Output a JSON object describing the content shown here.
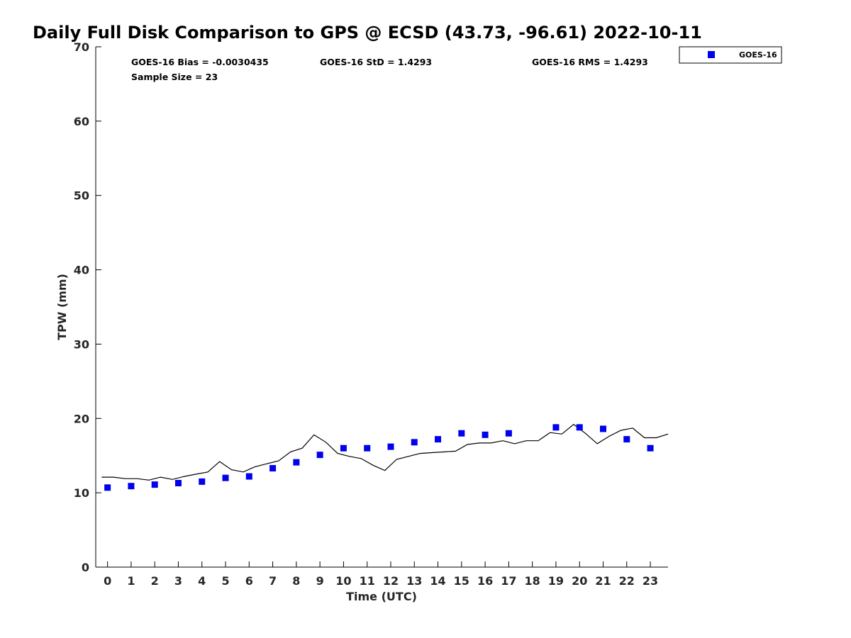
{
  "chart_data": {
    "type": "scatter",
    "title": "Daily Full Disk Comparison to GPS @ ECSD (43.73, -96.61) 2022-10-11",
    "xlabel": "Time (UTC)",
    "ylabel": "TPW (mm)",
    "xlim": [
      -0.5,
      23.75
    ],
    "ylim": [
      0,
      70
    ],
    "xticks": [
      0,
      1,
      2,
      3,
      4,
      5,
      6,
      7,
      8,
      9,
      10,
      11,
      12,
      13,
      14,
      15,
      16,
      17,
      18,
      19,
      20,
      21,
      22,
      23
    ],
    "yticks": [
      0,
      10,
      20,
      30,
      40,
      50,
      60,
      70
    ],
    "grid": false,
    "legend": {
      "position": "top-right",
      "entries": [
        "GOES-16"
      ]
    },
    "stats": {
      "bias": "GOES-16 Bias = -0.0030435",
      "std": "GOES-16 StD = 1.4293",
      "rms": "GOES-16 RMS = 1.4293",
      "sample": "Sample Size = 23"
    },
    "series": [
      {
        "name": "GOES-16",
        "kind": "markers",
        "color": "#0000ee",
        "x": [
          0,
          1,
          2,
          3,
          4,
          5,
          6,
          7,
          8,
          9,
          10,
          11,
          12,
          13,
          14,
          15,
          16,
          17,
          19,
          20,
          21,
          22,
          23
        ],
        "y": [
          10.7,
          10.9,
          11.1,
          11.3,
          11.5,
          12.0,
          12.2,
          13.3,
          14.1,
          15.1,
          16.0,
          16.0,
          16.2,
          16.8,
          17.2,
          18.0,
          17.8,
          18.0,
          18.8,
          18.8,
          18.6,
          17.2,
          16.0
        ]
      },
      {
        "kind": "line",
        "color": "#000000",
        "x": [
          -0.25,
          0.25,
          0.75,
          1.25,
          1.75,
          2.25,
          2.75,
          3.25,
          3.75,
          4.25,
          4.75,
          5.25,
          5.75,
          6.25,
          6.75,
          7.25,
          7.75,
          8.25,
          8.75,
          9.25,
          9.75,
          10.25,
          10.75,
          11.25,
          11.75,
          12.25,
          12.75,
          13.25,
          13.75,
          14.25,
          14.75,
          15.25,
          15.75,
          16.25,
          16.75,
          17.25,
          17.75,
          18.25,
          18.75,
          19.25,
          19.75,
          20.25,
          20.75,
          21.25,
          21.75,
          22.25,
          22.75,
          23.25,
          23.75
        ],
        "y": [
          12.1,
          12.1,
          11.9,
          11.9,
          11.7,
          12.1,
          11.8,
          12.2,
          12.5,
          12.8,
          14.2,
          13.1,
          12.8,
          13.5,
          13.9,
          14.3,
          15.5,
          16.0,
          17.8,
          16.8,
          15.3,
          14.9,
          14.6,
          13.7,
          13.0,
          14.5,
          14.9,
          15.3,
          15.4,
          15.5,
          15.6,
          16.5,
          16.7,
          16.7,
          17.0,
          16.6,
          17.0,
          17.0,
          18.1,
          17.9,
          19.2,
          18.0,
          16.6,
          17.6,
          18.4,
          18.7,
          17.4,
          17.4,
          17.9
        ]
      }
    ]
  }
}
